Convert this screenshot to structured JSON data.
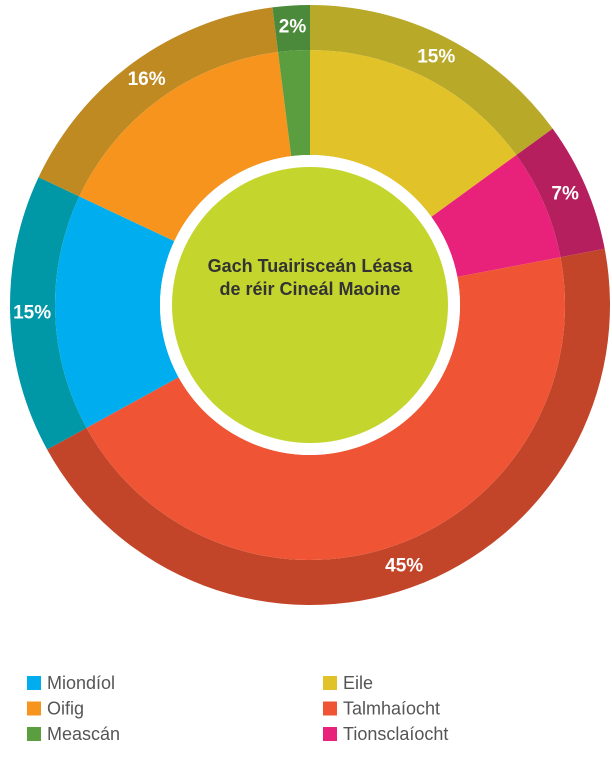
{
  "chart_data": {
    "type": "donut",
    "title": "Gach Tuairisceán Léasa de réir Cineál Maoine",
    "categories": [
      "Eile",
      "Tionsclaíocht",
      "Talmhaíocht",
      "Miondíol",
      "Oifig",
      "Meascán"
    ],
    "values": [
      15,
      7,
      45,
      15,
      16,
      2
    ],
    "value_labels": [
      "15%",
      "7%",
      "45%",
      "15%",
      "16%",
      "2%"
    ],
    "colors": [
      "#e2c229",
      "#e8217b",
      "#ef5535",
      "#00aeef",
      "#f7941d",
      "#5a9e3f"
    ],
    "outer_colors": [
      "#b8a929",
      "#b51f5e",
      "#c2452a",
      "#0097a7",
      "#c08a22",
      "#4a8a3a"
    ],
    "center_color": "#c4d62e"
  }
}
